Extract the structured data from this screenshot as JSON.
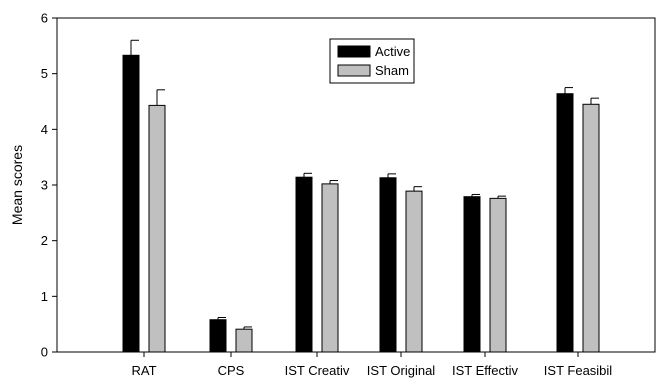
{
  "chart_data": {
    "type": "bar",
    "ylabel": "Mean scores",
    "ylim": [
      0,
      6
    ],
    "yticks": [
      0,
      1,
      2,
      3,
      4,
      5,
      6
    ],
    "categories": [
      "RAT",
      "CPS",
      "IST Creativ",
      "IST Original",
      "IST Effectiv",
      "IST Feasibil"
    ],
    "series": [
      {
        "name": "Active",
        "color": "#000000",
        "values": [
          5.33,
          0.58,
          3.14,
          3.13,
          2.79,
          4.64
        ],
        "errors": [
          0.27,
          0.04,
          0.07,
          0.07,
          0.04,
          0.11
        ]
      },
      {
        "name": "Sham",
        "color": "#c0c0c0",
        "values": [
          4.43,
          0.41,
          3.02,
          2.89,
          2.76,
          4.45
        ],
        "errors": [
          0.28,
          0.04,
          0.06,
          0.08,
          0.04,
          0.11
        ]
      }
    ],
    "legend": "top-center",
    "grid": false
  }
}
